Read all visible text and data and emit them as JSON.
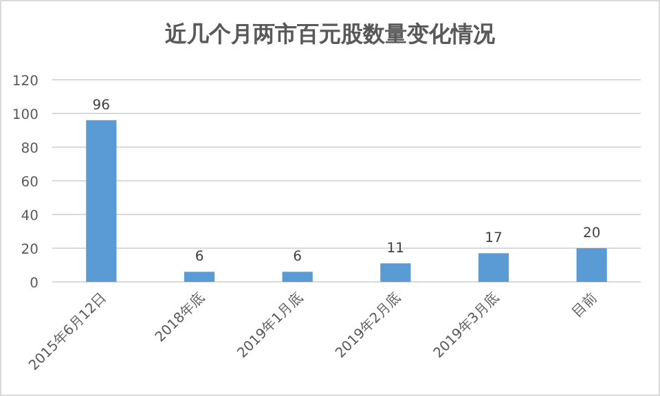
{
  "chart_data": {
    "type": "bar",
    "title": "近几个月两市百元股数量变化情况",
    "categories": [
      "2015年6月12日",
      "2018年底",
      "2019年1月底",
      "2019年2月底",
      "2019年3月底",
      "目前"
    ],
    "values": [
      96,
      6,
      6,
      11,
      17,
      20
    ],
    "color": "#5b9bd5",
    "data_labels": true,
    "ylim": [
      0,
      120
    ],
    "yticks": [
      0,
      20,
      40,
      60,
      80,
      100,
      120
    ],
    "grid": "y"
  }
}
